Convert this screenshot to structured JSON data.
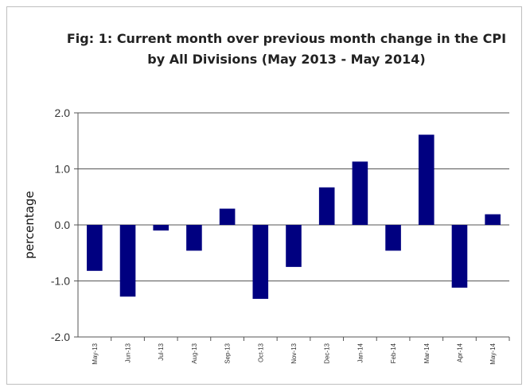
{
  "chart_data": {
    "type": "bar",
    "title_line1": "Fig: 1: Current month over previous month change in the CPI",
    "title_line2": "by All Divisions (May 2013 - May 2014)",
    "xlabel": "",
    "ylabel": "percentage",
    "ylim": [
      -2.0,
      2.0
    ],
    "yticks": [
      "2.0",
      "1.0",
      "0.0",
      "-1.0",
      "-2.0"
    ],
    "ytick_values": [
      2.0,
      1.0,
      0.0,
      -1.0,
      -2.0
    ],
    "categories": [
      "May-13",
      "Jun-13",
      "Jul-13",
      "Aug-13",
      "Sep-13",
      "Oct-13",
      "Nov-13",
      "Dec-13",
      "Jan-14",
      "Feb-14",
      "Mar-14",
      "Apr-14",
      "May-14"
    ],
    "values": [
      -0.82,
      -1.28,
      -0.1,
      -0.46,
      0.29,
      -1.32,
      -0.75,
      0.67,
      1.13,
      -0.46,
      1.61,
      -1.12,
      0.19
    ],
    "bar_color": "#000080",
    "grid": true,
    "legend": "none"
  }
}
